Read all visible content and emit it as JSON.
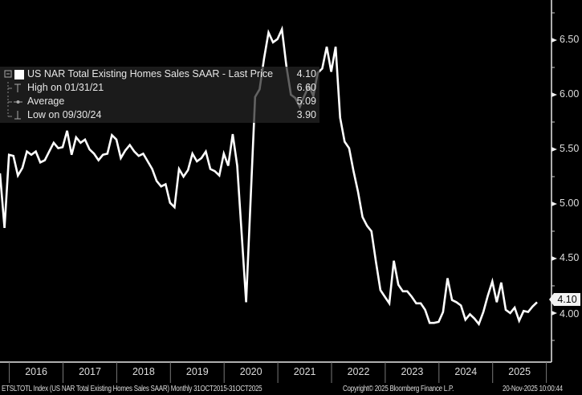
{
  "chart_data": {
    "type": "line",
    "title": "",
    "xlabel": "",
    "ylabel": "",
    "ylim": [
      3.6,
      6.88
    ],
    "y_ticks": [
      "4.00",
      "4.50",
      "5.00",
      "5.50",
      "6.00",
      "6.50"
    ],
    "y_axis_side": "right",
    "x_tick_labels": [
      "2016",
      "2017",
      "2018",
      "2019",
      "2020",
      "2021",
      "2022",
      "2023",
      "2024",
      "2025"
    ],
    "grid": false,
    "legend_position": "top-left",
    "background": "#000000",
    "line_color": "#ffffff",
    "series": [
      {
        "name": "US NAR Total Existing Homes Sales SAAR",
        "x": [
          "2015-10",
          "2015-11",
          "2015-12",
          "2016-01",
          "2016-02",
          "2016-03",
          "2016-04",
          "2016-05",
          "2016-06",
          "2016-07",
          "2016-08",
          "2016-09",
          "2016-10",
          "2016-11",
          "2016-12",
          "2017-01",
          "2017-02",
          "2017-03",
          "2017-04",
          "2017-05",
          "2017-06",
          "2017-07",
          "2017-08",
          "2017-09",
          "2017-10",
          "2017-11",
          "2017-12",
          "2018-01",
          "2018-02",
          "2018-03",
          "2018-04",
          "2018-05",
          "2018-06",
          "2018-07",
          "2018-08",
          "2018-09",
          "2018-10",
          "2018-11",
          "2018-12",
          "2019-01",
          "2019-02",
          "2019-03",
          "2019-04",
          "2019-05",
          "2019-06",
          "2019-07",
          "2019-08",
          "2019-09",
          "2019-10",
          "2019-11",
          "2019-12",
          "2020-01",
          "2020-02",
          "2020-03",
          "2020-04",
          "2020-05",
          "2020-06",
          "2020-07",
          "2020-08",
          "2020-09",
          "2020-10",
          "2020-11",
          "2020-12",
          "2021-01",
          "2021-02",
          "2021-03",
          "2021-04",
          "2021-05",
          "2021-06",
          "2021-07",
          "2021-08",
          "2021-09",
          "2021-10",
          "2021-11",
          "2021-12",
          "2022-01",
          "2022-02",
          "2022-03",
          "2022-04",
          "2022-05",
          "2022-06",
          "2022-07",
          "2022-08",
          "2022-09",
          "2022-10",
          "2022-11",
          "2022-12",
          "2023-01",
          "2023-02",
          "2023-03",
          "2023-04",
          "2023-05",
          "2023-06",
          "2023-07",
          "2023-08",
          "2023-09",
          "2023-10",
          "2023-11",
          "2023-12",
          "2024-01",
          "2024-02",
          "2024-03",
          "2024-04",
          "2024-05",
          "2024-06",
          "2024-07",
          "2024-08",
          "2024-09",
          "2024-10",
          "2024-11",
          "2024-12",
          "2025-01",
          "2025-02",
          "2025-03",
          "2025-04",
          "2025-05",
          "2025-06",
          "2025-07",
          "2025-08",
          "2025-09",
          "2025-10"
        ],
        "values": [
          5.28,
          4.78,
          5.45,
          5.44,
          5.26,
          5.33,
          5.48,
          5.45,
          5.48,
          5.38,
          5.4,
          5.48,
          5.56,
          5.51,
          5.52,
          5.67,
          5.45,
          5.61,
          5.56,
          5.59,
          5.5,
          5.46,
          5.4,
          5.45,
          5.46,
          5.63,
          5.59,
          5.42,
          5.49,
          5.54,
          5.48,
          5.44,
          5.46,
          5.39,
          5.32,
          5.21,
          5.16,
          5.18,
          5.01,
          4.97,
          5.32,
          5.25,
          5.31,
          5.46,
          5.39,
          5.42,
          5.48,
          5.32,
          5.3,
          5.26,
          5.46,
          5.35,
          5.64,
          5.35,
          4.72,
          4.1,
          5.04,
          5.98,
          6.05,
          6.33,
          6.57,
          6.48,
          6.51,
          6.6,
          6.26,
          6.0,
          5.97,
          5.89,
          5.99,
          6.08,
          5.99,
          6.2,
          6.24,
          6.44,
          6.21,
          6.44,
          5.79,
          5.57,
          5.51,
          5.3,
          5.11,
          4.88,
          4.8,
          4.75,
          4.47,
          4.21,
          4.15,
          4.09,
          4.48,
          4.26,
          4.2,
          4.2,
          4.15,
          4.09,
          4.09,
          4.03,
          3.91,
          3.91,
          3.92,
          4.01,
          4.32,
          4.12,
          4.1,
          4.07,
          3.94,
          3.99,
          3.95,
          3.9,
          4.01,
          4.16,
          4.29,
          4.1,
          4.28,
          4.03,
          4.0,
          4.05,
          3.93,
          4.02,
          4.01,
          4.06,
          4.1
        ]
      }
    ],
    "last_price_tag": "4.10"
  },
  "legend": {
    "title": "US NAR Total Existing Homes Sales SAAR - Last Price",
    "last": "4.10",
    "rows": [
      {
        "icon": "high-marker-icon",
        "label": "High on 01/31/21",
        "value": "6.60"
      },
      {
        "icon": "average-marker-icon",
        "label": "Average",
        "value": "5.09"
      },
      {
        "icon": "low-marker-icon",
        "label": "Low on 09/30/24",
        "value": "3.90"
      }
    ]
  },
  "footer": {
    "description": "ETSLTOTL Index (US NAR Total Existing Homes Sales SAAR) Monthly 31OCT2015-31OCT2025",
    "copyright": "Copyright© 2025 Bloomberg Finance L.P.",
    "timestamp": "20-Nov-2025 10:00:44"
  }
}
